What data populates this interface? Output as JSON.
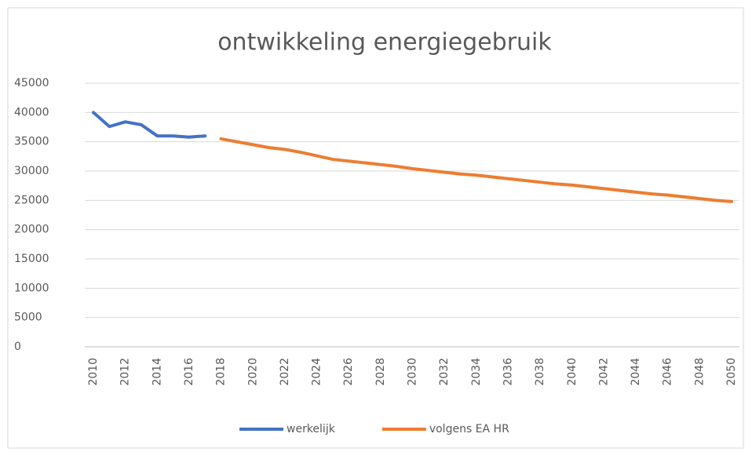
{
  "chart_data": {
    "type": "line",
    "title": "ontwikkeling energiegebruik",
    "x": [
      2010,
      2011,
      2012,
      2013,
      2014,
      2015,
      2016,
      2017,
      2018,
      2019,
      2020,
      2021,
      2022,
      2023,
      2024,
      2025,
      2026,
      2027,
      2028,
      2029,
      2030,
      2031,
      2032,
      2033,
      2034,
      2035,
      2036,
      2037,
      2038,
      2039,
      2040,
      2041,
      2042,
      2043,
      2044,
      2045,
      2046,
      2047,
      2048,
      2049,
      2050
    ],
    "xlim": [
      2010,
      2050
    ],
    "xticks": [
      2010,
      2012,
      2014,
      2016,
      2018,
      2020,
      2022,
      2024,
      2026,
      2028,
      2030,
      2032,
      2034,
      2036,
      2038,
      2040,
      2042,
      2044,
      2046,
      2048,
      2050
    ],
    "ylim": [
      0,
      45000
    ],
    "yticks": [
      0,
      5000,
      10000,
      15000,
      20000,
      25000,
      30000,
      35000,
      40000,
      45000
    ],
    "grid": true,
    "legend": "bottom",
    "series": [
      {
        "name": "werkelijk",
        "color": "#4472c4",
        "values": [
          40000,
          37600,
          38400,
          37900,
          36000,
          36000,
          35800,
          36000,
          null,
          null,
          null,
          null,
          null,
          null,
          null,
          null,
          null,
          null,
          null,
          null,
          null,
          null,
          null,
          null,
          null,
          null,
          null,
          null,
          null,
          null,
          null,
          null,
          null,
          null,
          null,
          null,
          null,
          null,
          null,
          null,
          null
        ]
      },
      {
        "name": "volgens EA HR",
        "color": "#ed7d31",
        "values": [
          null,
          null,
          null,
          null,
          null,
          null,
          null,
          null,
          35500,
          35000,
          34500,
          34000,
          33700,
          33200,
          32600,
          32000,
          31700,
          31400,
          31100,
          30800,
          30400,
          30100,
          29800,
          29500,
          29300,
          29000,
          28700,
          28400,
          28100,
          27800,
          27600,
          27300,
          27000,
          26700,
          26400,
          26100,
          25900,
          25600,
          25300,
          25000,
          24800
        ]
      }
    ]
  }
}
